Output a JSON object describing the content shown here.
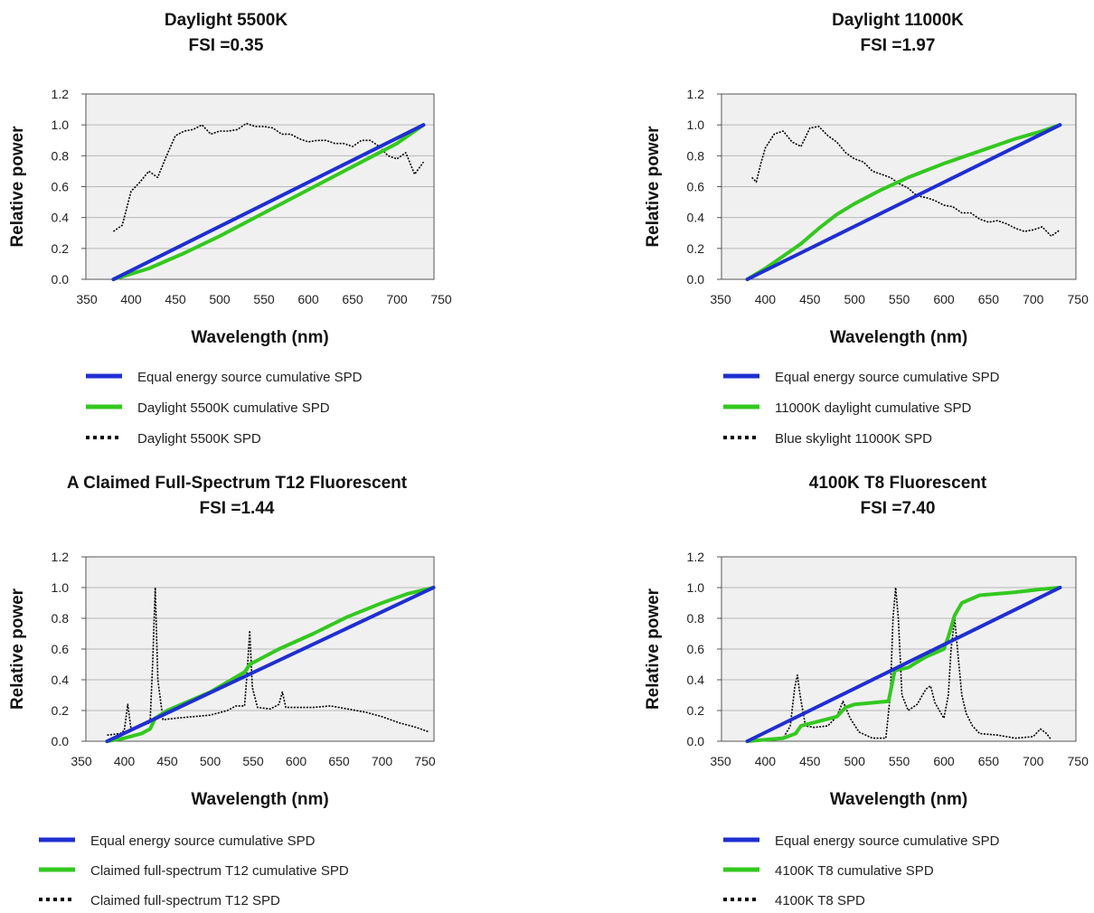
{
  "colors": {
    "equal": "#1f2fd0",
    "cumulative": "#33c81f",
    "spd": "#000000",
    "plot_bg": "#f0f0f0",
    "grid": "#b8b8b8",
    "border": "#555555"
  },
  "chart_data": [
    {
      "type": "line",
      "title": "Daylight 5500K",
      "subtitle": "FSI =0.35",
      "xlabel": "Wavelength (nm)",
      "ylabel": "Relative power",
      "xlim": [
        350,
        750
      ],
      "ylim": [
        0,
        1.2
      ],
      "xticks": [
        "350",
        "400",
        "450",
        "500",
        "550",
        "600",
        "650",
        "700",
        "750"
      ],
      "yticks": [
        "0.0",
        "0.2",
        "0.4",
        "0.6",
        "0.8",
        "1.0",
        "1.2"
      ],
      "grid": "horizontal",
      "legend": "bottom",
      "series": [
        {
          "name": "Equal energy source cumulative SPD",
          "style": "solid",
          "x": [
            380,
            730
          ],
          "y": [
            0,
            1
          ]
        },
        {
          "name": "Daylight 5500K cumulative SPD",
          "style": "solid",
          "x": [
            380,
            420,
            460,
            500,
            550,
            600,
            650,
            700,
            730
          ],
          "y": [
            0,
            0.07,
            0.17,
            0.28,
            0.43,
            0.58,
            0.73,
            0.88,
            1.0
          ]
        },
        {
          "name": "Daylight 5500K SPD",
          "style": "dotted",
          "x": [
            380,
            390,
            400,
            410,
            420,
            430,
            440,
            450,
            460,
            470,
            480,
            490,
            500,
            510,
            520,
            530,
            540,
            550,
            560,
            570,
            580,
            590,
            600,
            610,
            620,
            630,
            640,
            650,
            660,
            670,
            680,
            690,
            700,
            710,
            720,
            730
          ],
          "y": [
            0.31,
            0.35,
            0.57,
            0.63,
            0.7,
            0.66,
            0.8,
            0.93,
            0.96,
            0.97,
            1.0,
            0.94,
            0.96,
            0.96,
            0.97,
            1.01,
            0.99,
            0.99,
            0.98,
            0.94,
            0.94,
            0.91,
            0.89,
            0.9,
            0.9,
            0.88,
            0.88,
            0.86,
            0.9,
            0.9,
            0.86,
            0.8,
            0.78,
            0.82,
            0.68,
            0.76
          ]
        }
      ]
    },
    {
      "type": "line",
      "title": "Daylight 11000K",
      "subtitle": "FSI =1.97",
      "xlabel": "Wavelength (nm)",
      "ylabel": "Relative power",
      "xlim": [
        350,
        750
      ],
      "ylim": [
        0,
        1.2
      ],
      "xticks": [
        "350",
        "400",
        "450",
        "500",
        "550",
        "600",
        "650",
        "700",
        "750"
      ],
      "yticks": [
        "0.0",
        "0.2",
        "0.4",
        "0.6",
        "0.8",
        "1.0",
        "1.2"
      ],
      "grid": "horizontal",
      "legend": "bottom",
      "series": [
        {
          "name": "Equal energy source cumulative SPD",
          "style": "solid",
          "x": [
            380,
            730
          ],
          "y": [
            0,
            1
          ]
        },
        {
          "name": "11000K daylight cumulative SPD",
          "style": "solid",
          "x": [
            380,
            400,
            420,
            440,
            460,
            480,
            500,
            530,
            560,
            600,
            640,
            680,
            710,
            730
          ],
          "y": [
            0,
            0.07,
            0.15,
            0.23,
            0.33,
            0.42,
            0.49,
            0.58,
            0.66,
            0.75,
            0.83,
            0.91,
            0.96,
            1.0
          ]
        },
        {
          "name": "Blue skylight 11000K SPD",
          "style": "dotted",
          "x": [
            385,
            390,
            395,
            400,
            410,
            420,
            430,
            440,
            450,
            460,
            470,
            480,
            490,
            500,
            510,
            520,
            530,
            540,
            550,
            560,
            570,
            580,
            590,
            600,
            610,
            620,
            630,
            640,
            650,
            660,
            670,
            680,
            690,
            700,
            710,
            720,
            730
          ],
          "y": [
            0.66,
            0.63,
            0.75,
            0.85,
            0.94,
            0.96,
            0.89,
            0.86,
            0.98,
            0.99,
            0.93,
            0.89,
            0.82,
            0.78,
            0.76,
            0.7,
            0.68,
            0.66,
            0.62,
            0.59,
            0.54,
            0.53,
            0.51,
            0.48,
            0.47,
            0.43,
            0.43,
            0.39,
            0.37,
            0.38,
            0.36,
            0.33,
            0.31,
            0.32,
            0.34,
            0.28,
            0.32
          ]
        }
      ]
    },
    {
      "type": "line",
      "title": "A Claimed Full-Spectrum T12 Fluorescent",
      "subtitle": "FSI =1.44",
      "xlabel": "Wavelength (nm)",
      "ylabel": "Relative power",
      "xlim": [
        350,
        760
      ],
      "ylim": [
        0,
        1.2
      ],
      "xticks": [
        "350",
        "400",
        "450",
        "500",
        "550",
        "600",
        "650",
        "700",
        "750"
      ],
      "yticks": [
        "0.0",
        "0.2",
        "0.4",
        "0.6",
        "0.8",
        "1.0",
        "1.2"
      ],
      "grid": "horizontal",
      "legend": "bottom",
      "series": [
        {
          "name": "Equal energy source cumulative SPD",
          "style": "solid",
          "x": [
            380,
            760
          ],
          "y": [
            0,
            1
          ]
        },
        {
          "name": "Claimed full-spectrum T12 cumulative SPD",
          "style": "solid",
          "x": [
            380,
            400,
            420,
            430,
            436,
            450,
            500,
            540,
            546,
            580,
            620,
            660,
            700,
            730,
            760
          ],
          "y": [
            0,
            0.02,
            0.05,
            0.08,
            0.15,
            0.2,
            0.32,
            0.45,
            0.5,
            0.6,
            0.7,
            0.81,
            0.9,
            0.96,
            1.0
          ]
        },
        {
          "name": "Claimed full-spectrum T12 SPD",
          "style": "dotted",
          "x": [
            380,
            395,
            400,
            404,
            408,
            420,
            430,
            433,
            436,
            439,
            445,
            460,
            480,
            500,
            520,
            530,
            540,
            543,
            546,
            549,
            555,
            570,
            580,
            584,
            588,
            600,
            620,
            640,
            660,
            680,
            700,
            720,
            740,
            755
          ],
          "y": [
            0.04,
            0.05,
            0.07,
            0.24,
            0.07,
            0.1,
            0.12,
            0.5,
            1.0,
            0.4,
            0.14,
            0.15,
            0.16,
            0.17,
            0.2,
            0.23,
            0.23,
            0.45,
            0.72,
            0.35,
            0.22,
            0.21,
            0.24,
            0.32,
            0.22,
            0.22,
            0.22,
            0.23,
            0.21,
            0.19,
            0.16,
            0.12,
            0.09,
            0.06
          ]
        }
      ]
    },
    {
      "type": "line",
      "title": "4100K T8 Fluorescent",
      "subtitle": "FSI =7.40",
      "xlabel": "Wavelength (nm)",
      "ylabel": "Relative power",
      "xlim": [
        350,
        750
      ],
      "ylim": [
        0,
        1.2
      ],
      "xticks": [
        "350",
        "400",
        "450",
        "500",
        "550",
        "600",
        "650",
        "700",
        "750"
      ],
      "yticks": [
        "0.0",
        "0.2",
        "0.4",
        "0.6",
        "0.8",
        "1.0",
        "1.2"
      ],
      "grid": "horizontal",
      "legend": "bottom",
      "series": [
        {
          "name": "Equal energy source cumulative SPD",
          "style": "solid",
          "x": [
            380,
            730
          ],
          "y": [
            0,
            1
          ]
        },
        {
          "name": "4100K T8 cumulative SPD",
          "style": "solid",
          "x": [
            380,
            420,
            434,
            440,
            480,
            490,
            500,
            538,
            545,
            560,
            580,
            600,
            605,
            612,
            620,
            640,
            680,
            710,
            730
          ],
          "y": [
            0,
            0.02,
            0.05,
            0.1,
            0.16,
            0.22,
            0.24,
            0.26,
            0.46,
            0.48,
            0.55,
            0.6,
            0.68,
            0.82,
            0.9,
            0.95,
            0.97,
            0.99,
            1.0
          ]
        },
        {
          "name": "4100K T8 SPD",
          "style": "dotted",
          "x": [
            400,
            420,
            428,
            433,
            436,
            439,
            445,
            455,
            470,
            480,
            487,
            495,
            505,
            520,
            535,
            540,
            543,
            546,
            549,
            553,
            560,
            570,
            580,
            585,
            590,
            600,
            605,
            608,
            612,
            616,
            620,
            625,
            632,
            640,
            660,
            680,
            700,
            708,
            715,
            720
          ],
          "y": [
            0.01,
            0.02,
            0.1,
            0.35,
            0.43,
            0.3,
            0.1,
            0.09,
            0.1,
            0.16,
            0.26,
            0.15,
            0.06,
            0.02,
            0.02,
            0.3,
            0.8,
            1.0,
            0.8,
            0.3,
            0.2,
            0.24,
            0.34,
            0.36,
            0.25,
            0.15,
            0.3,
            0.6,
            0.8,
            0.55,
            0.3,
            0.18,
            0.1,
            0.05,
            0.04,
            0.02,
            0.03,
            0.08,
            0.05,
            0.01
          ]
        }
      ]
    }
  ]
}
